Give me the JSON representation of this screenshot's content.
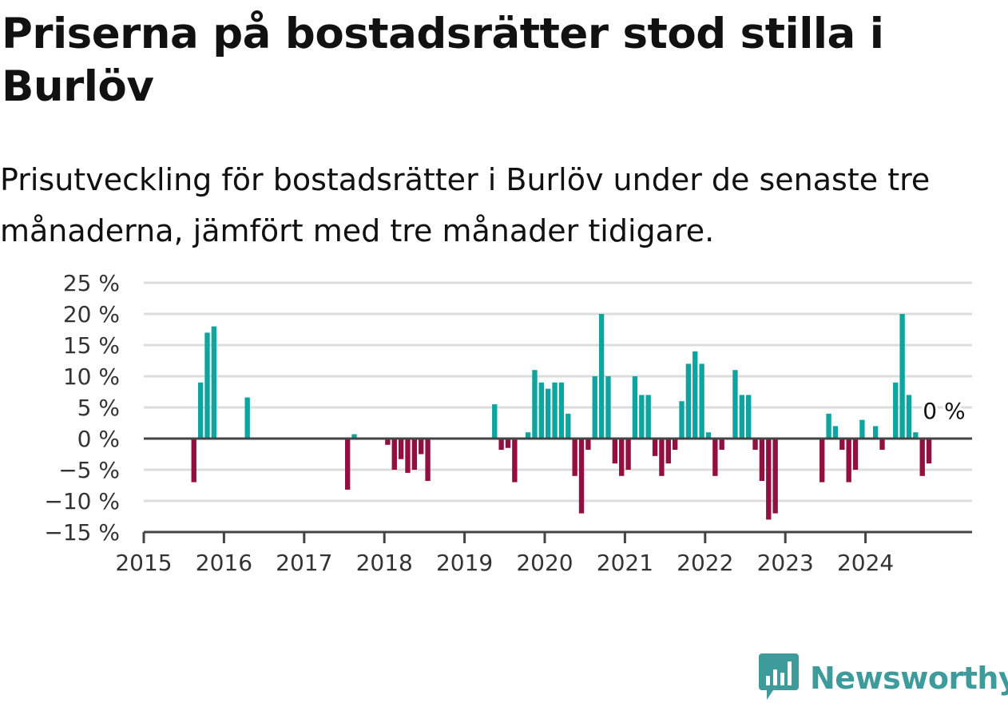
{
  "title": "Priserna på bostadsrätter stod stilla i Burlöv",
  "subtitle": "Prisutveckling för bostadsrätter i Burlöv under de senaste tre månaderna, jämfört med tre månader tidigare.",
  "brand": {
    "name": "Newsworthy",
    "icon": "newsworthy-logo-icon",
    "color": "#3d9b9b"
  },
  "chart_data": {
    "type": "bar",
    "title": "Priserna på bostadsrätter stod stilla i Burlöv",
    "xlabel": "",
    "ylabel": "",
    "x_ticks": [
      "2015",
      "2016",
      "2017",
      "2018",
      "2019",
      "2020",
      "2021",
      "2022",
      "2023",
      "2024"
    ],
    "y_ticks": [
      "25 %",
      "20 %",
      "15 %",
      "10 %",
      "5 %",
      "0 %",
      "−5 %",
      "−10 %",
      "−15 %"
    ],
    "ylim": [
      -15,
      25
    ],
    "grid": true,
    "colors": {
      "positive": "#0ea5a0",
      "negative": "#930f3f"
    },
    "last_value_label": "0 %",
    "start": "2015-01",
    "values": [
      0,
      0,
      0,
      0,
      0,
      0,
      0,
      -7,
      9,
      17,
      18,
      0,
      0,
      0,
      0,
      6.6,
      0,
      0,
      0,
      0,
      0,
      0,
      0,
      0,
      0,
      0,
      0,
      0,
      0,
      0,
      -8.2,
      0.7,
      0,
      0,
      0,
      0,
      -1,
      -5,
      -3.3,
      -5.5,
      -5,
      -2.5,
      -6.8,
      0,
      0,
      0,
      0,
      0,
      0,
      0,
      0,
      0,
      5.5,
      -1.8,
      -1.5,
      -7,
      0,
      1,
      11,
      9,
      8,
      9,
      9,
      4,
      -6,
      -12,
      -1.8,
      10,
      20,
      10,
      -4,
      -6,
      -5,
      10,
      7,
      7,
      -2.8,
      -6,
      -4,
      -1.8,
      6,
      12,
      14,
      12,
      1,
      -6,
      -1.8,
      0,
      11,
      7,
      7,
      -1.8,
      -6.8,
      -13,
      -12,
      0,
      0,
      0,
      0,
      0,
      0,
      -7,
      4,
      2,
      -1.8,
      -7,
      -5,
      3,
      0,
      2,
      -1.8,
      0,
      9,
      20,
      7,
      1,
      -6,
      -4,
      0
    ]
  }
}
